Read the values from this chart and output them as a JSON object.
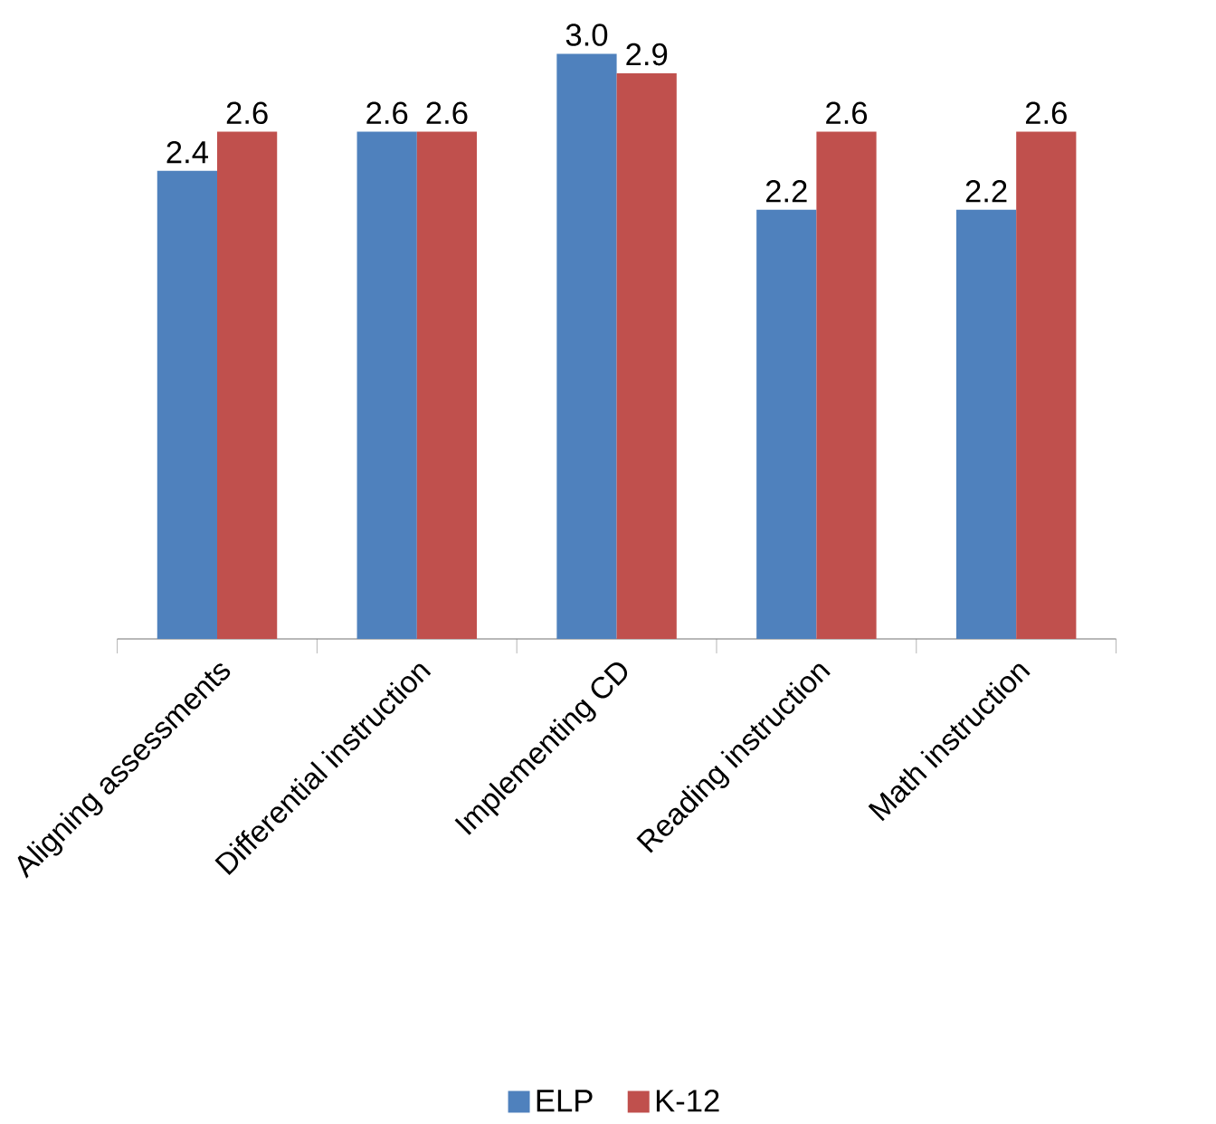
{
  "chart_data": {
    "type": "bar",
    "categories": [
      "Aligning assessments",
      "Differential instruction",
      "Implementing CD",
      "Reading instruction",
      "Math instruction"
    ],
    "series": [
      {
        "name": "ELP",
        "color": "#4f81bd",
        "values": [
          2.4,
          2.6,
          3.0,
          2.2,
          2.2
        ],
        "value_labels": [
          "2.4",
          "2.6",
          "3.0",
          "2.2",
          "2.2"
        ]
      },
      {
        "name": "K-12",
        "color": "#c0504d",
        "values": [
          2.6,
          2.6,
          2.9,
          2.6,
          2.6
        ],
        "value_labels": [
          "2.6",
          "2.6",
          "2.9",
          "2.6",
          "2.6"
        ]
      }
    ],
    "tick_labels": "x",
    "legend": "bottom",
    "grid": false
  }
}
